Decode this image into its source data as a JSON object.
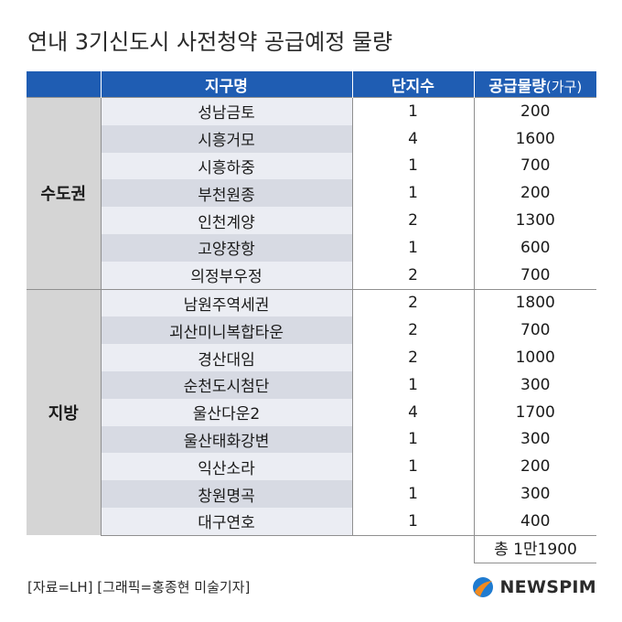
{
  "title": "연내 3기신도시 사전청약 공급예정 물량",
  "chart_data": {
    "type": "table",
    "columns": [
      {
        "label": "",
        "unit": ""
      },
      {
        "label": "지구명",
        "unit": ""
      },
      {
        "label": "단지수",
        "unit": ""
      },
      {
        "label": "공급물량",
        "unit": "(가구)"
      }
    ],
    "groups": [
      {
        "region": "수도권",
        "rows": [
          {
            "district": "성남금토",
            "complexes": 1,
            "supply": 200
          },
          {
            "district": "시흥거모",
            "complexes": 4,
            "supply": 1600
          },
          {
            "district": "시흥하중",
            "complexes": 1,
            "supply": 700
          },
          {
            "district": "부천원종",
            "complexes": 1,
            "supply": 200
          },
          {
            "district": "인천계양",
            "complexes": 2,
            "supply": 1300
          },
          {
            "district": "고양장항",
            "complexes": 1,
            "supply": 600
          },
          {
            "district": "의정부우정",
            "complexes": 2,
            "supply": 700
          }
        ]
      },
      {
        "region": "지방",
        "rows": [
          {
            "district": "남원주역세권",
            "complexes": 2,
            "supply": 1800
          },
          {
            "district": "괴산미니복합타운",
            "complexes": 2,
            "supply": 700
          },
          {
            "district": "경산대임",
            "complexes": 2,
            "supply": 1000
          },
          {
            "district": "순천도시첨단",
            "complexes": 1,
            "supply": 300
          },
          {
            "district": "울산다운2",
            "complexes": 4,
            "supply": 1700
          },
          {
            "district": "울산태화강변",
            "complexes": 1,
            "supply": 300
          },
          {
            "district": "익산소라",
            "complexes": 1,
            "supply": 200
          },
          {
            "district": "창원명곡",
            "complexes": 1,
            "supply": 300
          },
          {
            "district": "대구연호",
            "complexes": 1,
            "supply": 400
          }
        ]
      }
    ],
    "total": "총 1만1900"
  },
  "source": "[자료=LH] [그래픽=홍종현 미술기자]",
  "logo": {
    "text": "NEWSPIM",
    "icon": "newspim-logo-icon"
  },
  "colors": {
    "header": "#1f5db3",
    "region_cell": "#d5d5d5",
    "row_light": "#ebedf3",
    "row_dark": "#d7dae3",
    "logo_blue": "#1f7bd0",
    "logo_orange": "#f28a1e"
  }
}
